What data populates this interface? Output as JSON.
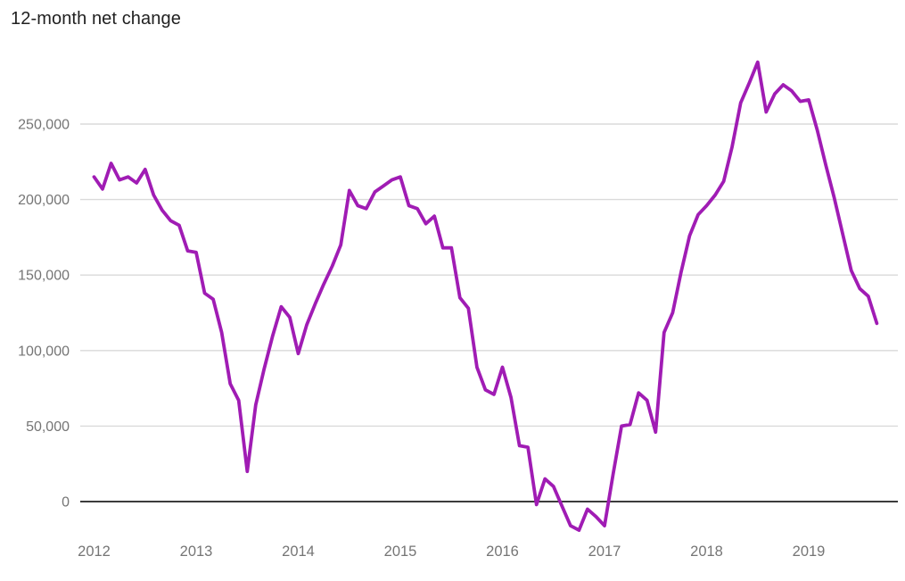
{
  "chart_data": {
    "type": "line",
    "title": "12-month net change",
    "xlabel": "",
    "ylabel": "",
    "grid": true,
    "legend": "none",
    "ylim": [
      -25000,
      300000
    ],
    "x_range": {
      "first_point": "Jan 2012",
      "last_point": "Sep 2019",
      "frequency": "monthly"
    },
    "colors": {
      "line": "#A01CB4",
      "gridline": "#DADADA",
      "zero_line": "#3C3C3C",
      "tick_label": "#757575",
      "title": "#212121",
      "background": "#FFFFFF"
    },
    "y_ticks": [
      {
        "value": 0,
        "label": "0"
      },
      {
        "value": 50000,
        "label": "50,000"
      },
      {
        "value": 100000,
        "label": "100,000"
      },
      {
        "value": 150000,
        "label": "150,000"
      },
      {
        "value": 200000,
        "label": "200,000"
      },
      {
        "value": 250000,
        "label": "250,000"
      }
    ],
    "x_ticks": [
      {
        "label": "2012",
        "month_index": 0
      },
      {
        "label": "2013",
        "month_index": 12
      },
      {
        "label": "2014",
        "month_index": 24
      },
      {
        "label": "2015",
        "month_index": 36
      },
      {
        "label": "2016",
        "month_index": 48
      },
      {
        "label": "2017",
        "month_index": 60
      },
      {
        "label": "2018",
        "month_index": 72
      },
      {
        "label": "2019",
        "month_index": 84
      }
    ],
    "series": [
      {
        "name": "12-month net change",
        "color": "#A01CB4",
        "values": [
          215000,
          207000,
          224000,
          213000,
          215000,
          211000,
          220000,
          203000,
          193000,
          186000,
          183000,
          166000,
          165000,
          138000,
          134000,
          112000,
          78000,
          67000,
          20000,
          64000,
          88000,
          110000,
          129000,
          122000,
          98000,
          117000,
          131000,
          144000,
          156000,
          170000,
          206000,
          196000,
          194000,
          205000,
          209000,
          213000,
          215000,
          196000,
          194000,
          184000,
          189000,
          168000,
          168000,
          135000,
          128000,
          89000,
          74000,
          71000,
          89000,
          69000,
          37000,
          36000,
          -2000,
          15000,
          10000,
          -3000,
          -16000,
          -19000,
          -5000,
          -10000,
          -16000,
          18000,
          50000,
          51000,
          72000,
          67000,
          46000,
          112000,
          125000,
          152000,
          176000,
          190000,
          196000,
          203000,
          212000,
          235000,
          264000,
          277000,
          291000,
          258000,
          270000,
          276000,
          272000,
          265000,
          266000,
          246000,
          223000,
          201000,
          177000,
          153000,
          141000,
          136000,
          118000
        ]
      }
    ]
  }
}
